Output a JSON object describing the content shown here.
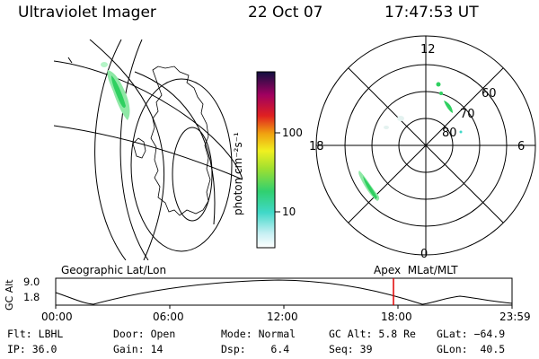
{
  "header": {
    "instrument": "Ultraviolet Imager",
    "date": "22 Oct 07",
    "time": "17:47:53 UT"
  },
  "colorbar": {
    "label": "photon cm⁻²s⁻¹",
    "ticks": [
      "100",
      "10"
    ]
  },
  "polar": {
    "hour_labels": [
      "12",
      "18",
      "6",
      "0"
    ],
    "lat_labels": [
      "60",
      "70",
      "80"
    ]
  },
  "timeline": {
    "left_title": "Geographic Lat/Lon",
    "right_title": "Apex  MLat/MLT",
    "ylabel": "GC Alt",
    "y_ticks": [
      "9.0",
      "1.8"
    ],
    "x_ticks": [
      "00:00",
      "06:00",
      "12:00",
      "18:00",
      "23:59"
    ]
  },
  "info": {
    "row1": [
      {
        "label": "Flt:",
        "value": "LBHL"
      },
      {
        "label": "Door:",
        "value": "Open"
      },
      {
        "label": "Mode:",
        "value": "Normal"
      },
      {
        "label": "GC Alt:",
        "value": "5.8 Re"
      },
      {
        "label": "GLat:",
        "value": "−64.9"
      }
    ],
    "row2": [
      {
        "label": "IP:",
        "value": "36.0"
      },
      {
        "label": "Gain:",
        "value": "14"
      },
      {
        "label": "Dsp:",
        "value": "6.4"
      },
      {
        "label": "Seq:",
        "value": "39"
      },
      {
        "label": "GLon:",
        "value": "40.5"
      }
    ]
  },
  "colors": {
    "current_time_marker": "#e00000",
    "aurora_bright": "#2fd060",
    "aurora_dim": "#9ef0b0"
  }
}
